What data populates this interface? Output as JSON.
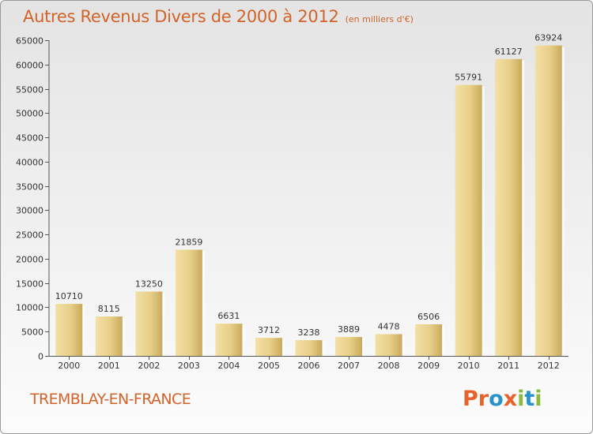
{
  "header": {
    "title": "Autres Revenus Divers de 2000 à 2012",
    "subtitle": "(en milliers d'€)"
  },
  "footer": {
    "location": "TREMBLAY-EN-FRANCE",
    "logo_text": "Proxiti",
    "logo_letters": [
      {
        "char": "P",
        "color": "#e8632b"
      },
      {
        "char": "r",
        "color": "#e8632b"
      },
      {
        "char": "o",
        "color": "#2a93c9"
      },
      {
        "char": "x",
        "color": "#e8632b"
      },
      {
        "char": "i",
        "color": "#8cb93e"
      },
      {
        "char": "t",
        "color": "#2a93c9"
      },
      {
        "char": "i",
        "color": "#8cb93e"
      }
    ]
  },
  "chart_data": {
    "type": "bar",
    "title": "Autres Revenus Divers de 2000 à 2012",
    "subtitle": "(en milliers d'€)",
    "categories": [
      "2000",
      "2001",
      "2002",
      "2003",
      "2004",
      "2005",
      "2006",
      "2007",
      "2008",
      "2009",
      "2010",
      "2011",
      "2012"
    ],
    "values": [
      10710,
      8115,
      13250,
      21859,
      6631,
      3712,
      3238,
      3889,
      4478,
      6506,
      55791,
      61127,
      63924
    ],
    "ylim": [
      0,
      65000
    ],
    "yticks": [
      0,
      5000,
      10000,
      15000,
      20000,
      25000,
      30000,
      35000,
      40000,
      45000,
      50000,
      55000,
      60000,
      65000
    ],
    "grid": false,
    "legend": "none",
    "bar_color": "#e3c77e",
    "data_labels": true
  }
}
